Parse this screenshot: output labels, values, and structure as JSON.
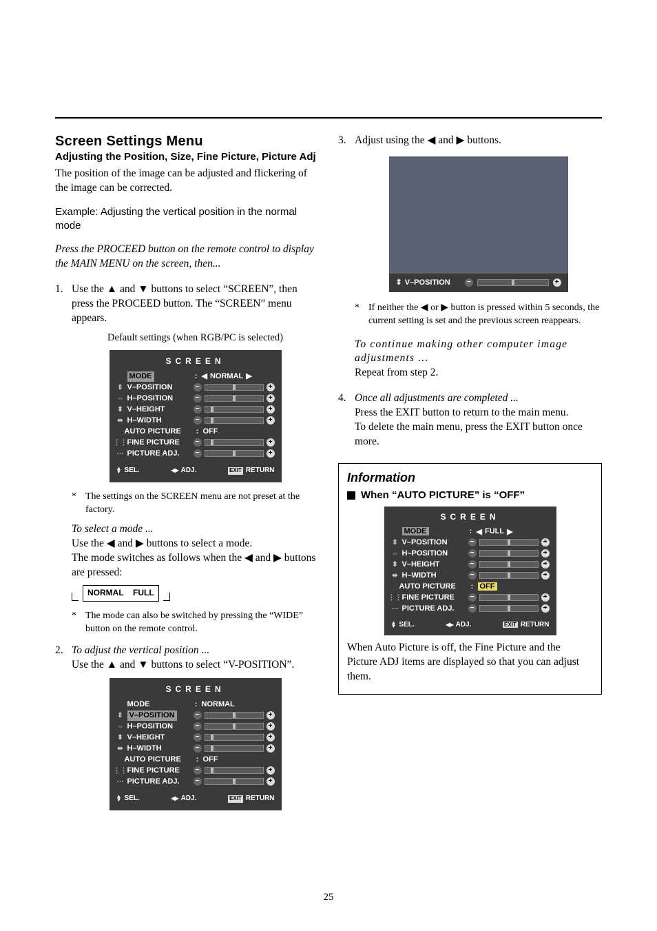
{
  "left": {
    "heading": "Screen Settings Menu",
    "subheading": "Adjusting the Position, Size, Fine Picture, Picture Adj",
    "intro": "The position of the image can be adjusted and flickering of the image can be corrected.",
    "example": "Example: Adjusting the vertical position in the normal mode",
    "press": "Press the PROCEED button on the remote control to display the MAIN MENU on the screen, then...",
    "step1_a": "Use the ▲ and ▼ buttons to select “SCREEN”, then press the PROCEED button. The “SCREEN” menu appears.",
    "step1_caption": "Default settings (when RGB/PC is selected)",
    "osd1": {
      "title": "SCREEN",
      "mode_label": "MODE",
      "mode_value": "NORMAL",
      "rows": [
        {
          "label": "V–POSITION"
        },
        {
          "label": "H–POSITION"
        },
        {
          "label": "V–HEIGHT"
        },
        {
          "label": "H–WIDTH"
        }
      ],
      "auto_label": "AUTO PICTURE",
      "auto_value": "OFF",
      "fine_label": "FINE PICTURE",
      "padj_label": "PICTURE ADJ.",
      "footer_sel": "SEL.",
      "footer_adj": "ADJ.",
      "footer_ret": "RETURN",
      "footer_exit": "EXIT"
    },
    "star1": "The settings on the SCREEN menu are not preset at the factory.",
    "tosel": "To select a mode ...",
    "tosel_b": "Use the ◀ and ▶ buttons to select a mode.",
    "tosel_c": "The mode switches as follows when the ◀ and ▶ buttons are pressed:",
    "flow_a": "NORMAL",
    "flow_b": "FULL",
    "star2": "The mode can also be switched by pressing the “WIDE” button on the remote control.",
    "step2_a": "To adjust the vertical position ...",
    "step2_b": "Use the ▲ and ▼ buttons to select “V-POSITION”.",
    "osd2": {
      "title": "SCREEN",
      "mode_label": "MODE",
      "mode_value": "NORMAL",
      "rows": [
        {
          "label": "V–POSITION"
        },
        {
          "label": "H–POSITION"
        },
        {
          "label": "V–HEIGHT"
        },
        {
          "label": "H–WIDTH"
        }
      ],
      "auto_label": "AUTO PICTURE",
      "auto_value": "OFF",
      "fine_label": "FINE PICTURE",
      "padj_label": "PICTURE ADJ.",
      "footer_sel": "SEL.",
      "footer_adj": "ADJ.",
      "footer_ret": "RETURN",
      "footer_exit": "EXIT"
    }
  },
  "right": {
    "step3": "Adjust using the ◀ and ▶ buttons.",
    "strip_label": "V–POSITION",
    "star3": "If neither the ◀ or ▶ button is pressed within 5 seconds, the current setting is set and the previous screen reappears.",
    "cont_a": "To continue making other computer image adjustments ...",
    "cont_b": "Repeat from step 2.",
    "step4_a": "Once all adjustments are completed ...",
    "step4_b": "Press the EXIT button to return to the main menu.",
    "step4_c": "To delete the main menu, press the EXIT button once more.",
    "info_title": "Information",
    "info_sub": "When “AUTO PICTURE” is “OFF”",
    "osd3": {
      "title": "SCREEN",
      "mode_label": "MODE",
      "mode_value": "FULL",
      "rows": [
        {
          "label": "V–POSITION"
        },
        {
          "label": "H–POSITION"
        },
        {
          "label": "V–HEIGHT"
        },
        {
          "label": "H–WIDTH"
        }
      ],
      "auto_label": "AUTO PICTURE",
      "auto_value": "OFF",
      "fine_label": "FINE PICTURE",
      "padj_label": "PICTURE ADJ.",
      "footer_sel": "SEL.",
      "footer_adj": "ADJ.",
      "footer_ret": "RETURN",
      "footer_exit": "EXIT"
    },
    "info_body": "When Auto Picture is off, the Fine Picture and the Picture ADJ items are displayed so that you can adjust them."
  },
  "page": "25"
}
